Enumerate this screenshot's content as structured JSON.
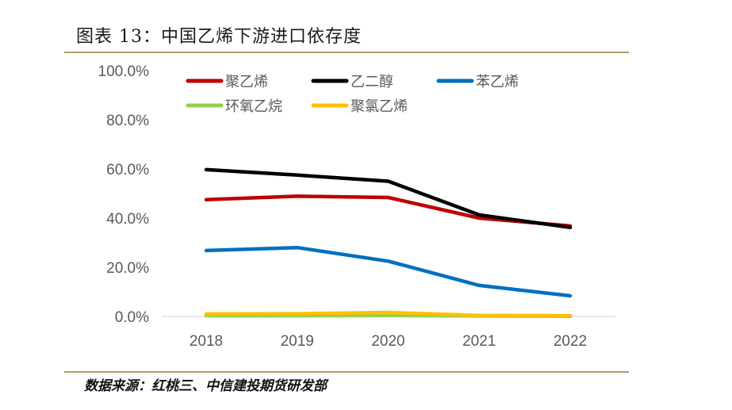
{
  "header": {
    "title": "图表 13：中国乙烯下游进口依存度"
  },
  "footer": {
    "source": "数据来源：红桃三、中信建投期货研发部"
  },
  "chart_data": {
    "type": "line",
    "title": "中国乙烯下游进口依存度",
    "xlabel": "",
    "ylabel": "",
    "categories": [
      "2018",
      "2019",
      "2020",
      "2021",
      "2022"
    ],
    "ylim": [
      0,
      100
    ],
    "yticks": [
      0,
      20,
      40,
      60,
      80,
      100
    ],
    "ytick_labels": [
      "0.0%",
      "20.0%",
      "40.0%",
      "60.0%",
      "80.0%",
      "100.0%"
    ],
    "grid": false,
    "legend_position": "top",
    "series": [
      {
        "name": "聚乙烯",
        "color": "#c00000",
        "values": [
          47.5,
          48.9,
          48.4,
          40.0,
          36.8
        ]
      },
      {
        "name": "乙二醇",
        "color": "#000000",
        "values": [
          59.7,
          57.5,
          55.0,
          41.3,
          36.2
        ]
      },
      {
        "name": "苯乙烯",
        "color": "#0070c0",
        "values": [
          26.8,
          28.0,
          22.5,
          12.6,
          8.4
        ]
      },
      {
        "name": "环氧乙烷",
        "color": "#92d050",
        "values": [
          0.3,
          0.3,
          0.4,
          0.2,
          0.1
        ]
      },
      {
        "name": "聚氯乙烯",
        "color": "#ffc000",
        "values": [
          1.0,
          1.1,
          1.6,
          0.4,
          0.3
        ]
      }
    ]
  }
}
